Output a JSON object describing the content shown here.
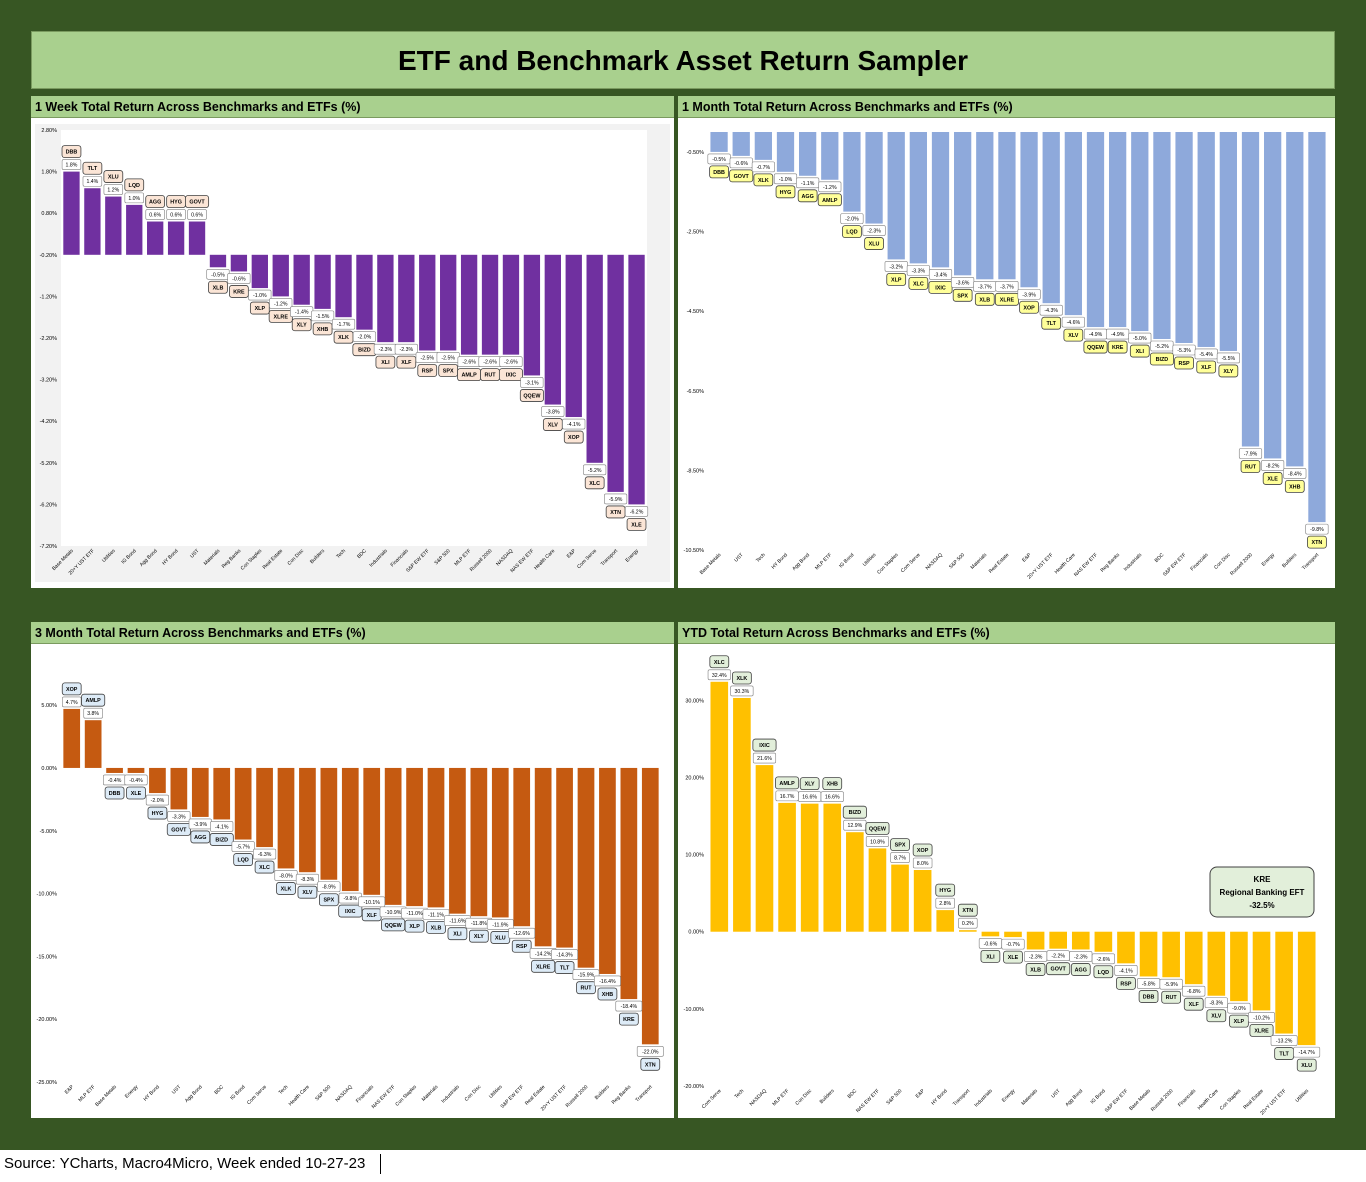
{
  "title": "ETF and Benchmark Asset Return Sampler",
  "source": "Source: YCharts, Macro4Micro, Week ended 10-27-23",
  "chart_data": [
    {
      "id": "w1",
      "type": "bar",
      "title": "1 Week Total Return Across Benchmarks and ETFs (%)",
      "bar_color": "#7030a0",
      "label_fill": "#fbe5d6",
      "panel_bg": "#f2f2f2",
      "ylim": [
        -7.2,
        2.8
      ],
      "yticks": [
        2.8,
        1.8,
        0.8,
        -0.2,
        -1.2,
        -2.2,
        -3.2,
        -4.2,
        -5.2,
        -6.2,
        -7.2
      ],
      "ytick_labels": [
        "2.80%",
        "1.80%",
        "0.80%",
        "-0.20%",
        "-1.20%",
        "-2.20%",
        "-3.20%",
        "-4.20%",
        "-5.20%",
        "-6.20%",
        "-7.20%"
      ],
      "baseline": -0.2,
      "categories": [
        "Base Metals",
        "20+Y UST ETF",
        "Utilities",
        "IG Bond",
        "Agg Bond",
        "HY Bond",
        "UST",
        "Materials",
        "Reg Banks",
        "Con Staples",
        "Real Estate",
        "Con Disc",
        "Builders",
        "Tech",
        "BDC",
        "Industrials",
        "Financials",
        "S&P EW ETF",
        "S&P 500",
        "MLP ETF",
        "Russell 2000",
        "NASDAQ",
        "NAS EW ETF",
        "Health Care",
        "E&P",
        "Com Serve",
        "Transport",
        "Energy"
      ],
      "tickers": [
        "DBB",
        "TLT",
        "XLU",
        "LQD",
        "AGG",
        "HYG",
        "GOVT",
        "XLB",
        "KRE",
        "XLP",
        "XLRE",
        "XLY",
        "XHB",
        "XLK",
        "BIZD",
        "XLI",
        "XLF",
        "RSP",
        "SPX",
        "AMLP",
        "RUT",
        "IXIC",
        "QQEW",
        "XLV",
        "XOP",
        "XLC",
        "XTN",
        "XLE"
      ],
      "values": [
        1.8,
        1.4,
        1.2,
        1.0,
        0.6,
        0.6,
        0.6,
        -0.5,
        -0.6,
        -1.0,
        -1.2,
        -1.4,
        -1.5,
        -1.7,
        -2.0,
        -2.3,
        -2.3,
        -2.5,
        -2.5,
        -2.6,
        -2.6,
        -2.6,
        -3.1,
        -3.8,
        -4.1,
        -5.2,
        -5.9,
        -6.2
      ],
      "value_labels": [
        "1.8%",
        "1.4%",
        "1.2%",
        "1.0%",
        "0.6%",
        "0.6%",
        "0.6%",
        "-0.5%",
        "-0.6%",
        "-1.0%",
        "-1.2%",
        "-1.4%",
        "-1.5%",
        "-1.7%",
        "-2.0%",
        "-2.3%",
        "-2.3%",
        "-2.5%",
        "-2.5%",
        "-2.6%",
        "-2.6%",
        "-2.6%",
        "-3.1%",
        "-3.8%",
        "-4.1%",
        "-5.2%",
        "-5.9%",
        "-6.2%"
      ]
    },
    {
      "id": "m1",
      "type": "bar",
      "title": "1 Month Total Return Across Benchmarks and ETFs (%)",
      "bar_color": "#8ea9db",
      "label_fill": "#ffff99",
      "panel_bg": "#ffffff",
      "ylim": [
        -10.5,
        0
      ],
      "yticks": [
        -0.5,
        -2.5,
        -4.5,
        -6.5,
        -8.5,
        -10.5
      ],
      "ytick_labels": [
        "-0.50%",
        "-2.50%",
        "-4.50%",
        "-6.50%",
        "-8.50%",
        "-10.50%"
      ],
      "baseline": 0,
      "categories": [
        "Base Metals",
        "UST",
        "Tech",
        "HY Bond",
        "Agg Bond",
        "MLP ETF",
        "IG Bond",
        "Utilities",
        "Con Staples",
        "Com Serve",
        "NASDAQ",
        "S&P 500",
        "Materials",
        "Real Estate",
        "E&P",
        "20+Y UST ETF",
        "Health Care",
        "NAS EW ETF",
        "Reg Banks",
        "Industrials",
        "BDC",
        "S&P EW ETF",
        "Financials",
        "Con Disc",
        "Russell 2000",
        "Energy",
        "Builders",
        "Transport"
      ],
      "tickers": [
        "DBB",
        "GOVT",
        "XLK",
        "HYG",
        "AGG",
        "AMLP",
        "LQD",
        "XLU",
        "XLP",
        "XLC",
        "IXIC",
        "SPX",
        "XLB",
        "XLRE",
        "XOP",
        "TLT",
        "XLV",
        "QQEW",
        "KRE",
        "XLI",
        "BIZD",
        "RSP",
        "XLF",
        "XLY",
        "RUT",
        "XLE",
        "XHB",
        "XTN"
      ],
      "values": [
        -0.5,
        -0.6,
        -0.7,
        -1.0,
        -1.1,
        -1.2,
        -2.0,
        -2.3,
        -3.2,
        -3.3,
        -3.4,
        -3.6,
        -3.7,
        -3.7,
        -3.9,
        -4.3,
        -4.6,
        -4.9,
        -4.9,
        -5.0,
        -5.2,
        -5.3,
        -5.4,
        -5.5,
        -7.9,
        -8.2,
        -8.4,
        -9.8
      ],
      "value_labels": [
        "-0.5%",
        "-0.6%",
        "-0.7%",
        "-1.0%",
        "-1.1%",
        "-1.2%",
        "-2.0%",
        "-2.3%",
        "-3.2%",
        "-3.3%",
        "-3.4%",
        "-3.6%",
        "-3.7%",
        "-3.7%",
        "-3.9%",
        "-4.3%",
        "-4.6%",
        "-4.9%",
        "-4.9%",
        "-5.0%",
        "-5.2%",
        "-5.3%",
        "-5.4%",
        "-5.5%",
        "-7.9%",
        "-8.2%",
        "-8.4%",
        "-9.8%"
      ]
    },
    {
      "id": "m3",
      "type": "bar",
      "title": "3 Month Total Return Across Benchmarks and ETFs (%)",
      "bar_color": "#c55a11",
      "label_fill": "#ddebf7",
      "panel_bg": "#ffffff",
      "ylim": [
        -25,
        7
      ],
      "yticks": [
        5,
        0,
        -5,
        -10,
        -15,
        -20,
        -25
      ],
      "ytick_labels": [
        "5.00%",
        "0.00%",
        "-5.00%",
        "-10.00%",
        "-15.00%",
        "-20.00%",
        "-25.00%"
      ],
      "baseline": 0,
      "categories": [
        "E&P",
        "MLP ETF",
        "Base Metals",
        "Energy",
        "HY Bond",
        "UST",
        "Agg Bond",
        "BDC",
        "IG Bond",
        "Com Serve",
        "Tech",
        "Health Care",
        "S&P 500",
        "NASDAQ",
        "Financials",
        "NAS EW ETF",
        "Con Staples",
        "Materials",
        "Industrials",
        "Con Disc",
        "Utilities",
        "S&P EW ETF",
        "Real Estate",
        "20+Y UST ETF",
        "Russell 2000",
        "Builders",
        "Reg Banks",
        "Transport"
      ],
      "tickers": [
        "XOP",
        "AMLP",
        "DBB",
        "XLE",
        "HYG",
        "GOVT",
        "AGG",
        "BIZD",
        "LQD",
        "XLC",
        "XLK",
        "XLV",
        "SPX",
        "IXIC",
        "XLF",
        "QQEW",
        "XLP",
        "XLB",
        "XLI",
        "XLY",
        "XLU",
        "RSP",
        "XLRE",
        "TLT",
        "RUT",
        "XHB",
        "KRE",
        "XTN"
      ],
      "values": [
        4.7,
        3.8,
        -0.4,
        -0.4,
        -2.0,
        -3.3,
        -3.9,
        -4.1,
        -5.7,
        -6.3,
        -8.0,
        -8.3,
        -8.9,
        -9.8,
        -10.1,
        -10.9,
        -11.0,
        -11.1,
        -11.6,
        -11.8,
        -11.9,
        -12.6,
        -14.2,
        -14.3,
        -15.9,
        -16.4,
        -18.4,
        -22.0
      ],
      "value_labels": [
        "4.7%",
        "3.8%",
        "-0.4%",
        "-0.4%",
        "-2.0%",
        "-3.3%",
        "-3.9%",
        "-4.1%",
        "-5.7%",
        "-6.3%",
        "-8.0%",
        "-8.3%",
        "-8.9%",
        "-9.8%",
        "-10.1%",
        "-10.9%",
        "-11.0%",
        "-11.1%",
        "-11.6%",
        "-11.8%",
        "-11.9%",
        "-12.6%",
        "-14.2%",
        "-14.3%",
        "-15.9%",
        "-16.4%",
        "-18.4%",
        "-22.0%"
      ]
    },
    {
      "id": "ytd",
      "type": "bar",
      "title": "YTD Total Return Across Benchmarks and ETFs (%)",
      "bar_color": "#ffc000",
      "label_fill": "#e2efda",
      "panel_bg": "#ffffff",
      "ylim": [
        -20,
        36
      ],
      "yticks": [
        30,
        20,
        10,
        0,
        -10,
        -20
      ],
      "ytick_labels": [
        "30.00%",
        "20.00%",
        "10.00%",
        "0.00%",
        "-10.00%",
        "-20.00%"
      ],
      "baseline": 0,
      "categories": [
        "Com Serve",
        "Tech",
        "NASDAQ",
        "MLP ETF",
        "Con Disc",
        "Builders",
        "BDC",
        "NAS EW ETF",
        "S&P 500",
        "E&P",
        "HY Bond",
        "Transport",
        "Industrials",
        "Energy",
        "Materials",
        "UST",
        "Agg Bond",
        "IG Bond",
        "S&P EW ETF",
        "Base Metals",
        "Russell 2000",
        "Financials",
        "Health Care",
        "Con Staples",
        "Real Estate",
        "20+Y UST ETF",
        "Utilities"
      ],
      "tickers": [
        "XLC",
        "XLK",
        "IXIC",
        "AMLP",
        "XLY",
        "XHB",
        "BIZD",
        "QQEW",
        "SPX",
        "XOP",
        "HYG",
        "XTN",
        "XLI",
        "XLE",
        "XLB",
        "GOVT",
        "AGG",
        "LQD",
        "RSP",
        "DBB",
        "RUT",
        "XLF",
        "XLV",
        "XLP",
        "XLRE",
        "TLT",
        "XLU"
      ],
      "values": [
        32.4,
        30.3,
        21.6,
        16.7,
        16.6,
        16.6,
        12.9,
        10.8,
        8.7,
        8.0,
        2.8,
        0.2,
        -0.6,
        -0.7,
        -2.3,
        -2.2,
        -2.3,
        -2.6,
        -4.1,
        -5.8,
        -5.9,
        -6.8,
        -8.3,
        -9.0,
        -10.2,
        -13.2,
        -14.7
      ],
      "value_labels": [
        "32.4%",
        "30.3%",
        "21.6%",
        "16.7%",
        "16.6%",
        "16.6%",
        "12.9%",
        "10.8%",
        "8.7%",
        "8.0%",
        "2.8%",
        "0.2%",
        "-0.6%",
        "-0.7%",
        "-2.3%",
        "-2.2%",
        "-2.3%",
        "-2.6%",
        "-4.1%",
        "-5.8%",
        "-5.9%",
        "-6.8%",
        "-8.3%",
        "-9.0%",
        "-10.2%",
        "-13.2%",
        "-14.7%"
      ],
      "callout": {
        "ticker": "KRE",
        "name": "Regional Banking EFT",
        "value": "-32.5%"
      }
    }
  ]
}
